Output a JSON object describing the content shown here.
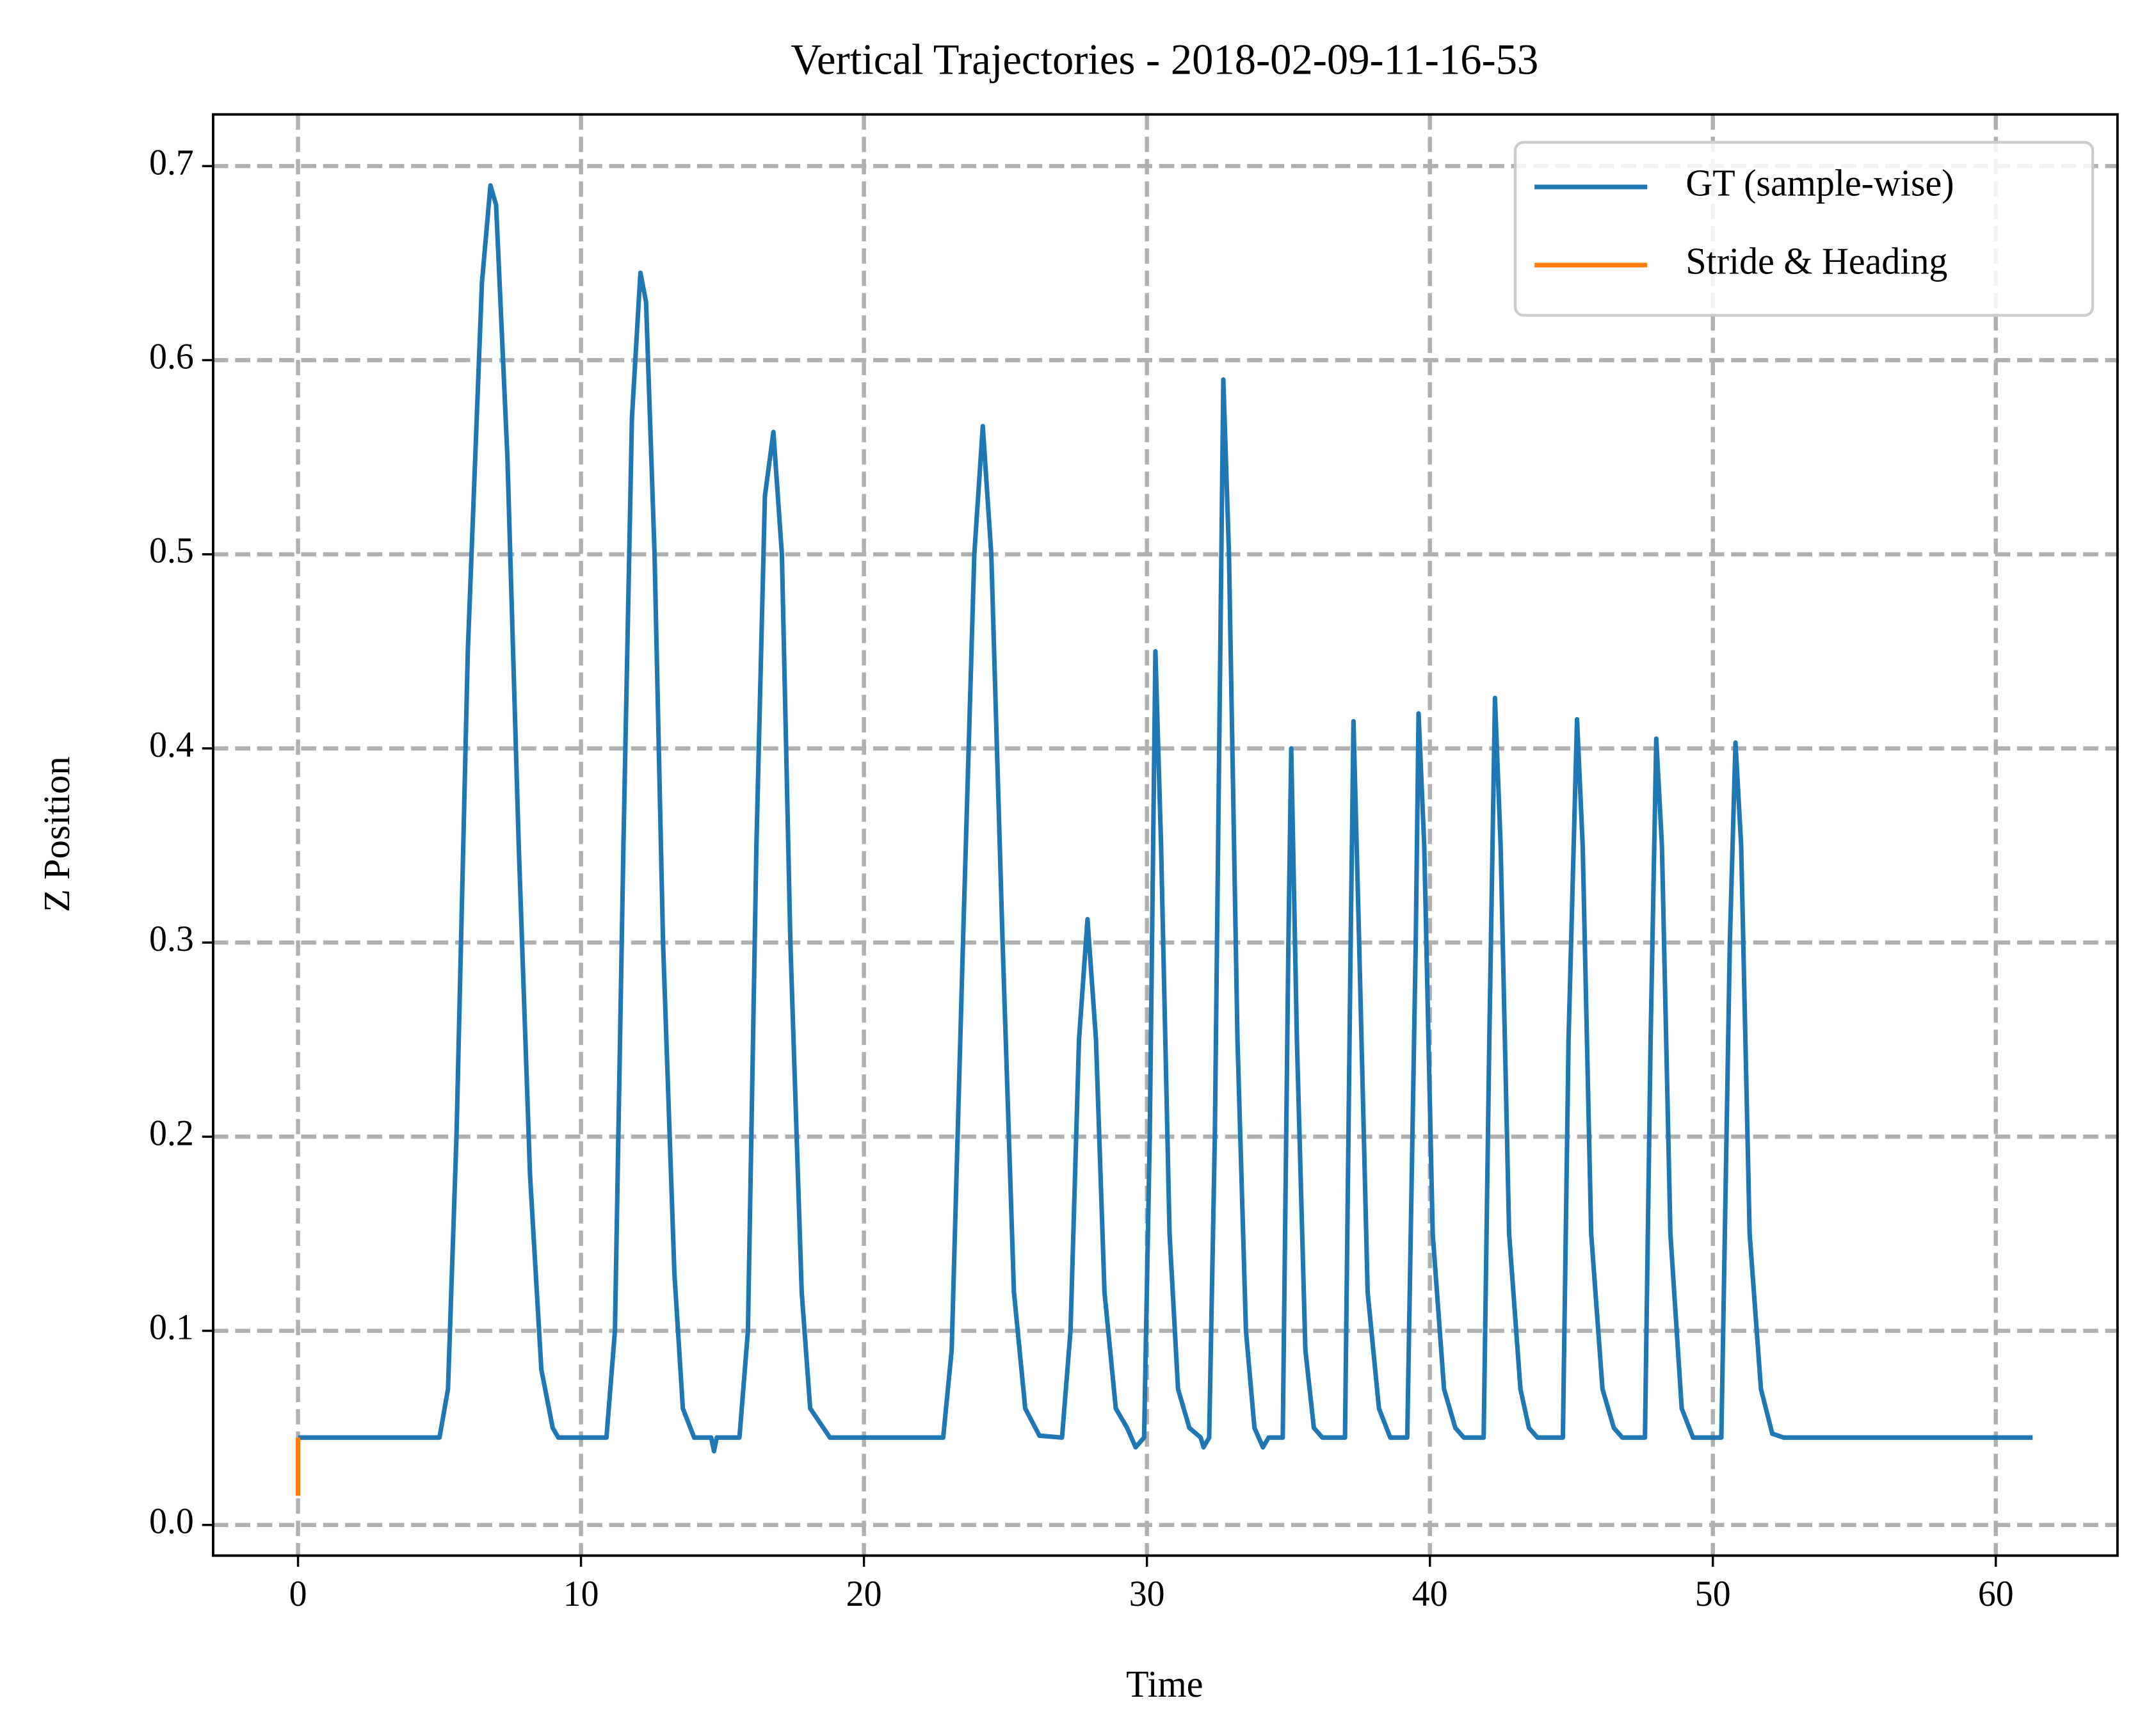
{
  "chart_data": {
    "type": "line",
    "title": "Vertical Trajectories - 2018-02-09-11-16-53",
    "xlabel": "Time",
    "ylabel": "Z Position",
    "xlim": [
      -3.0,
      64.3
    ],
    "ylim": [
      -0.0158,
      0.7266
    ],
    "xticks": [
      0,
      10,
      20,
      30,
      40,
      50,
      60
    ],
    "yticks": [
      {
        "value": 0,
        "label": "0.0"
      },
      0.1,
      0.2,
      0.3,
      0.4,
      0.5,
      0.6,
      0.7
    ],
    "grid": true,
    "legend": "upper right",
    "series": [
      {
        "name": "GT (sample-wise)",
        "color": "#1f77b4",
        "x": [
          0,
          5.0,
          5.3,
          5.6,
          6.0,
          6.5,
          6.8,
          7.0,
          7.4,
          7.8,
          8.2,
          8.6,
          9.0,
          9.2,
          10.9,
          11.2,
          11.5,
          11.8,
          12.1,
          12.3,
          12.6,
          12.9,
          13.3,
          13.6,
          14.0,
          14.6,
          14.7,
          14.8,
          15.6,
          15.9,
          16.2,
          16.5,
          16.8,
          17.1,
          17.4,
          17.8,
          18.1,
          18.8,
          22.8,
          23.1,
          23.5,
          23.9,
          24.2,
          24.5,
          24.9,
          25.3,
          25.7,
          26.2,
          27.0,
          27.3,
          27.6,
          27.9,
          28.2,
          28.5,
          28.9,
          29.3,
          29.6,
          29.9,
          30.1,
          30.3,
          30.5,
          30.8,
          31.1,
          31.5,
          31.9,
          32.0,
          32.2,
          32.4,
          32.7,
          32.9,
          33.2,
          33.5,
          33.8,
          34.1,
          34.3,
          34.8,
          35.0,
          35.1,
          35.3,
          35.6,
          35.9,
          36.2,
          37.0,
          37.2,
          37.3,
          37.5,
          37.8,
          38.2,
          38.6,
          39.2,
          39.5,
          39.6,
          39.8,
          40.1,
          40.5,
          40.9,
          41.2,
          41.9,
          42.1,
          42.3,
          42.5,
          42.8,
          43.2,
          43.5,
          43.8,
          44.7,
          44.9,
          45.2,
          45.4,
          45.7,
          46.1,
          46.5,
          46.8,
          47.6,
          47.8,
          48.0,
          48.2,
          48.5,
          48.9,
          49.3,
          50.3,
          50.6,
          50.8,
          51.0,
          51.3,
          51.7,
          52.1,
          52.5,
          61.3
        ],
        "values": [
          0.045,
          0.045,
          0.07,
          0.2,
          0.45,
          0.64,
          0.69,
          0.68,
          0.55,
          0.35,
          0.18,
          0.08,
          0.05,
          0.045,
          0.045,
          0.1,
          0.35,
          0.57,
          0.645,
          0.63,
          0.5,
          0.3,
          0.13,
          0.06,
          0.045,
          0.045,
          0.038,
          0.045,
          0.045,
          0.1,
          0.35,
          0.53,
          0.563,
          0.5,
          0.3,
          0.12,
          0.06,
          0.045,
          0.045,
          0.09,
          0.3,
          0.5,
          0.566,
          0.5,
          0.3,
          0.12,
          0.06,
          0.046,
          0.045,
          0.1,
          0.25,
          0.312,
          0.25,
          0.12,
          0.06,
          0.05,
          0.04,
          0.045,
          0.2,
          0.45,
          0.35,
          0.15,
          0.07,
          0.05,
          0.045,
          0.04,
          0.045,
          0.2,
          0.59,
          0.5,
          0.25,
          0.1,
          0.05,
          0.04,
          0.045,
          0.045,
          0.3,
          0.4,
          0.25,
          0.09,
          0.05,
          0.045,
          0.045,
          0.3,
          0.414,
          0.3,
          0.12,
          0.06,
          0.045,
          0.045,
          0.3,
          0.418,
          0.35,
          0.15,
          0.07,
          0.05,
          0.045,
          0.045,
          0.25,
          0.426,
          0.35,
          0.15,
          0.07,
          0.05,
          0.045,
          0.045,
          0.25,
          0.415,
          0.35,
          0.15,
          0.07,
          0.05,
          0.045,
          0.045,
          0.25,
          0.405,
          0.35,
          0.15,
          0.06,
          0.045,
          0.045,
          0.3,
          0.403,
          0.35,
          0.15,
          0.07,
          0.047,
          0.045,
          0.045
        ]
      },
      {
        "name": "Stride & Heading",
        "color": "#ff7f0e",
        "x": [
          0,
          0
        ],
        "values": [
          0.015,
          0.045
        ]
      }
    ]
  }
}
